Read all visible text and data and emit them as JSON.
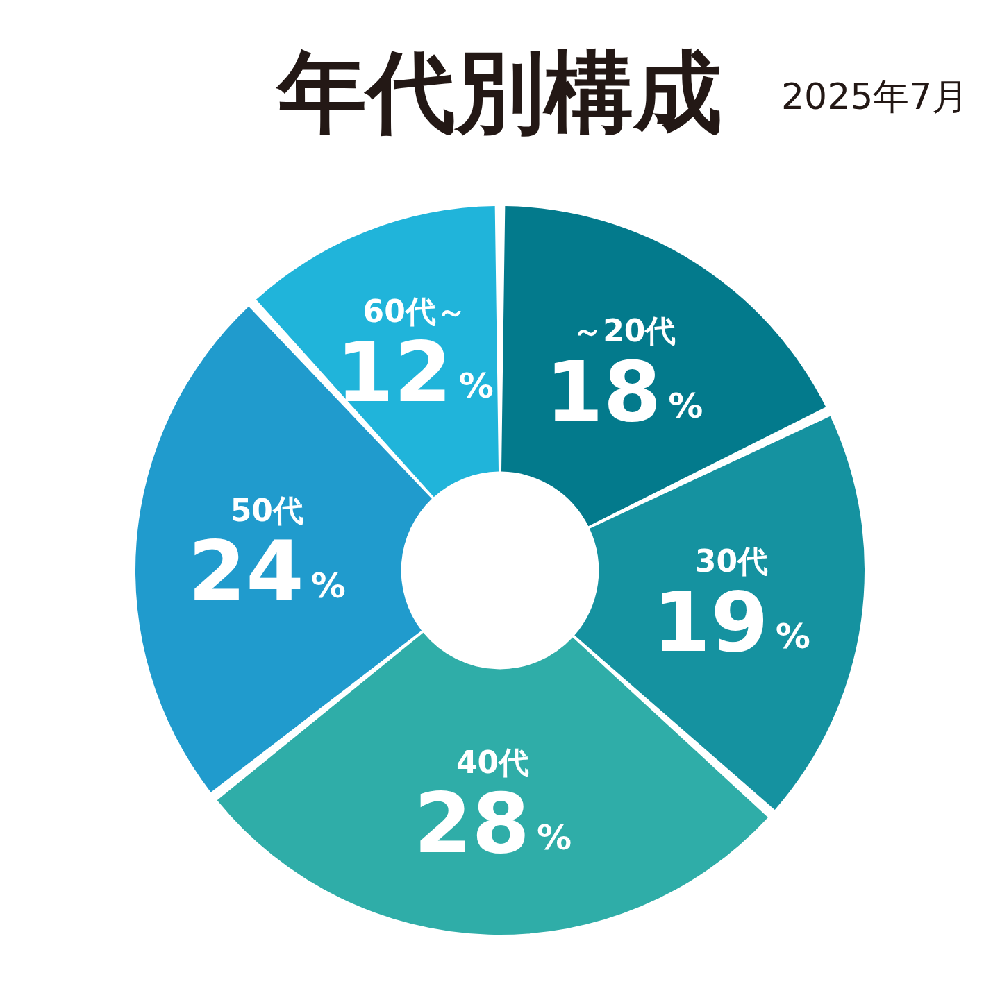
{
  "chart_data": {
    "type": "donut",
    "title": "年代別構成",
    "subtitle": "2025年7月",
    "categories": [
      "～20代",
      "30代",
      "40代",
      "50代",
      "60代～"
    ],
    "values": [
      18,
      19,
      28,
      24,
      12
    ],
    "value_labels": [
      "18%",
      "19%",
      "28%",
      "24%",
      "12%"
    ],
    "colors": [
      "#037a8c",
      "#1592a0",
      "#2fada8",
      "#209bcd",
      "#20b4da"
    ]
  }
}
